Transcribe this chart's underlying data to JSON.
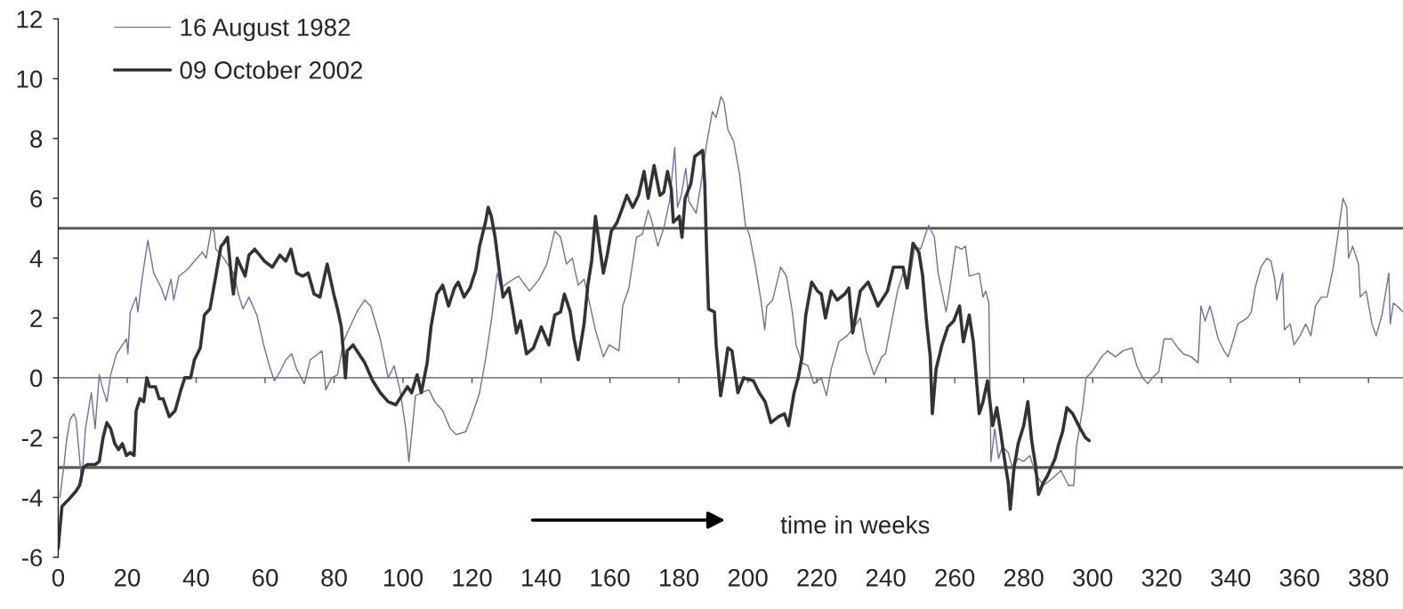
{
  "chart_data": {
    "type": "line",
    "xlim": [
      0,
      390
    ],
    "xticks": [
      0,
      20,
      40,
      60,
      80,
      100,
      120,
      140,
      160,
      180,
      200,
      220,
      240,
      260,
      280,
      300,
      320,
      340,
      360,
      380
    ],
    "ylim": [
      -6,
      12
    ],
    "yticks": [
      -6,
      -4,
      -2,
      0,
      2,
      4,
      6,
      8,
      10,
      12
    ],
    "legend": "top left",
    "ref_lines": [
      {
        "axis": "y",
        "value": 5,
        "color": "#595959"
      },
      {
        "axis": "y",
        "value": -3,
        "color": "#595959"
      }
    ],
    "annotations": [
      "time in weeks"
    ],
    "series": [
      {
        "name": "16 August 1982",
        "color": "#6b6fab",
        "x": [
          0.5,
          1.7,
          2.3,
          3.4,
          4.5,
          5.2,
          6.8,
          7.9,
          9.6,
          10.7,
          11.9,
          13.0,
          14.1,
          15.2,
          16.9,
          19.8,
          20.2,
          20.9,
          22.6,
          23.1,
          24.3,
          26.0,
          27.7,
          29.9,
          31.1,
          32.7,
          33.5,
          35.0,
          37.3,
          39.5,
          41.8,
          42.9,
          44.4,
          45.2,
          45.7,
          48.0,
          50.8,
          52.5,
          53.6,
          55.3,
          57.6,
          59.8,
          61.5,
          62.7,
          64.3,
          66.0,
          67.7,
          69.1,
          71.4,
          73.1,
          76.5,
          77.6,
          79.3,
          81.0,
          82.7,
          83.8,
          86.6,
          88.9,
          90.6,
          93.4,
          95.7,
          97.4,
          99.1,
          100.8,
          101.7,
          102.5,
          103.6,
          105.3,
          107.5,
          109.2,
          111.5,
          113.7,
          115.4,
          118.2,
          119.9,
          122.2,
          123.9,
          125.6,
          127.3,
          128.4,
          130.7,
          133.5,
          136.7,
          139.5,
          141.7,
          144.0,
          145.7,
          147.4,
          149.1,
          150.8,
          152.5,
          154.1,
          155.8,
          158.1,
          159.8,
          162.6,
          163.7,
          165.5,
          167.7,
          169.4,
          171.1,
          172.0,
          173.9,
          175.6,
          177.3,
          178.8,
          179.6,
          180.7,
          182.0,
          182.9,
          185.0,
          186.3,
          188.0,
          189.7,
          190.8,
          192.2,
          193.1,
          194.2,
          195.9,
          197.6,
          199.3,
          200.4,
          202.1,
          203.8,
          204.9,
          205.5,
          207.2,
          209.5,
          211.2,
          212.9,
          214.0,
          215.7,
          217.4,
          219.1,
          221.3,
          222.8,
          224.2,
          226.4,
          228.7,
          230.9,
          232.6,
          234.3,
          236.6,
          238.8,
          239.9,
          241.6,
          243.4,
          245.0,
          246.7,
          248.4,
          250.1,
          252.4,
          254.1,
          255.2,
          257.5,
          258.6,
          260.3,
          262.0,
          263.1,
          264.2,
          267.1,
          268.2,
          269.0,
          269.9,
          270.5,
          271.6,
          272.7,
          273.8,
          275.5,
          276.7,
          278.4,
          280.0,
          281.8,
          283.4,
          285.7,
          288.0,
          290.8,
          293.0,
          294.5,
          295.3,
          297.0,
          298.1,
          299.8,
          302.6,
          304.3,
          306.6,
          308.8,
          311.4,
          312.8,
          314.5,
          316.0,
          317.3,
          319.2,
          320.7,
          322.9,
          324.7,
          326.3,
          328.6,
          330.6,
          331.4,
          332.6,
          334.0,
          334.7,
          336.4,
          338.1,
          339.3,
          340.9,
          342.1,
          344.9,
          346.0,
          347.1,
          348.8,
          350.5,
          351.7,
          352.8,
          353.4,
          355.1,
          355.6,
          357.3,
          358.4,
          360.1,
          361.8,
          363.3,
          364.6,
          366.3,
          368.0,
          369.8,
          371.4,
          372.6,
          373.7,
          374.2,
          375.4,
          377.1,
          377.6,
          379.3,
          381.0,
          382.2,
          383.9,
          385.9,
          386.3,
          387.2,
          388.3,
          390.0
        ],
        "values": [
          -4.0,
          -2.9,
          -2.2,
          -1.4,
          -1.2,
          -1.4,
          -3.5,
          -1.7,
          -0.5,
          -1.7,
          0.1,
          -0.4,
          -0.8,
          0.1,
          0.8,
          1.3,
          0.8,
          2.2,
          2.7,
          2.2,
          3.3,
          4.6,
          3.5,
          3.0,
          2.6,
          3.3,
          2.6,
          3.4,
          3.6,
          3.9,
          4.2,
          4.0,
          5.0,
          4.9,
          4.3,
          4.0,
          3.5,
          2.7,
          2.3,
          2.7,
          2.1,
          1.0,
          0.3,
          -0.1,
          0.2,
          0.6,
          0.8,
          0.3,
          -0.2,
          0.6,
          0.9,
          -0.4,
          0.0,
          0.1,
          1.2,
          1.5,
          2.2,
          2.6,
          2.4,
          1.3,
          0.0,
          0.4,
          -0.4,
          -1.7,
          -2.8,
          -1.9,
          -0.6,
          -0.5,
          -0.4,
          -0.8,
          -1.1,
          -1.7,
          -1.9,
          -1.8,
          -1.3,
          -0.5,
          0.6,
          1.9,
          3.5,
          3.0,
          3.2,
          3.4,
          2.9,
          3.3,
          3.8,
          4.9,
          4.7,
          3.8,
          4.0,
          3.1,
          3.3,
          2.5,
          1.6,
          0.7,
          1.1,
          0.9,
          2.4,
          3.0,
          4.7,
          4.8,
          5.6,
          5.3,
          4.4,
          5.0,
          5.9,
          7.7,
          5.7,
          6.1,
          7.0,
          5.9,
          5.5,
          6.4,
          7.8,
          8.9,
          8.7,
          9.4,
          9.2,
          8.3,
          7.9,
          6.8,
          5.1,
          4.8,
          3.8,
          2.6,
          1.6,
          2.4,
          2.6,
          3.7,
          3.4,
          2.2,
          1.1,
          0.5,
          0.4,
          -0.2,
          0.0,
          -0.6,
          0.3,
          1.2,
          1.4,
          1.7,
          2.0,
          0.9,
          0.1,
          0.7,
          0.8,
          1.8,
          2.9,
          3.5,
          3.1,
          4.4,
          4.3,
          5.1,
          4.7,
          3.5,
          2.2,
          3.0,
          4.4,
          4.3,
          4.4,
          3.4,
          3.5,
          2.7,
          2.9,
          2.5,
          -2.8,
          -1.7,
          -2.7,
          -2.3,
          -2.5,
          -3.0,
          -2.7,
          -2.8,
          -2.6,
          -3.2,
          -3.6,
          -3.4,
          -3.1,
          -3.6,
          -3.6,
          -2.3,
          -1.1,
          0.0,
          0.2,
          0.7,
          0.9,
          0.7,
          0.9,
          1.0,
          0.4,
          0.0,
          -0.2,
          0.0,
          0.2,
          1.3,
          1.3,
          1.0,
          0.8,
          0.7,
          0.5,
          2.4,
          1.9,
          2.4,
          2.1,
          1.3,
          0.9,
          0.7,
          1.3,
          1.8,
          2.0,
          2.2,
          3.0,
          3.7,
          4.0,
          3.9,
          3.3,
          2.6,
          3.5,
          1.6,
          1.8,
          1.1,
          1.4,
          1.8,
          1.4,
          2.4,
          2.7,
          2.7,
          3.7,
          5.0,
          6.0,
          5.7,
          4.0,
          4.4,
          3.8,
          2.7,
          2.9,
          1.8,
          1.4,
          2.1,
          3.5,
          1.8,
          2.5,
          2.4,
          2.2
        ]
      },
      {
        "name": "09 October 2002",
        "color": "#333333",
        "x": [
          0.0,
          0.6,
          1.1,
          2.8,
          5.1,
          6.2,
          7.3,
          8.5,
          10.7,
          11.9,
          13.0,
          14.1,
          15.2,
          16.4,
          17.5,
          18.6,
          19.8,
          20.9,
          22.0,
          22.6,
          23.7,
          24.8,
          25.7,
          26.5,
          28.2,
          29.3,
          30.4,
          32.2,
          33.9,
          35.6,
          36.7,
          38.4,
          39.5,
          41.2,
          42.4,
          44.0,
          45.7,
          47.2,
          48.0,
          49.1,
          50.2,
          50.8,
          51.9,
          54.2,
          55.3,
          57.0,
          59.8,
          62.1,
          64.3,
          66.0,
          67.5,
          69.1,
          70.9,
          72.5,
          74.2,
          75.9,
          78.0,
          79.9,
          81.0,
          82.1,
          83.3,
          83.8,
          85.5,
          87.2,
          88.9,
          91.2,
          93.4,
          95.7,
          97.9,
          99.6,
          101.3,
          102.5,
          104.1,
          105.3,
          107.0,
          108.1,
          109.8,
          111.5,
          113.2,
          114.9,
          116.0,
          117.7,
          119.4,
          121.1,
          122.2,
          123.9,
          124.7,
          125.6,
          126.7,
          127.9,
          129.0,
          130.7,
          131.8,
          132.9,
          134.1,
          135.8,
          137.8,
          140.1,
          142.3,
          144.0,
          145.7,
          146.8,
          148.5,
          149.6,
          150.8,
          152.5,
          153.6,
          154.7,
          155.8,
          157.0,
          158.1,
          159.2,
          160.4,
          162.1,
          163.7,
          164.9,
          166.6,
          168.3,
          169.9,
          171.1,
          172.8,
          174.5,
          175.6,
          176.7,
          177.8,
          178.4,
          180.1,
          180.9,
          181.8,
          183.5,
          184.6,
          186.9,
          187.5,
          188.0,
          188.6,
          190.3,
          190.8,
          192.1,
          193.1,
          194.2,
          195.4,
          197.1,
          198.8,
          201.6,
          203.3,
          205.0,
          206.7,
          208.9,
          210.6,
          211.8,
          213.4,
          214.6,
          215.7,
          216.8,
          218.5,
          220.2,
          221.3,
          222.5,
          224.2,
          225.9,
          228.1,
          229.3,
          230.4,
          231.5,
          232.6,
          234.9,
          237.7,
          240.5,
          242.2,
          245.0,
          246.2,
          247.9,
          249.6,
          250.7,
          251.8,
          252.9,
          253.5,
          254.6,
          256.3,
          258.0,
          259.7,
          261.4,
          262.5,
          264.2,
          265.4,
          267.1,
          268.2,
          269.5,
          271.0,
          272.2,
          273.3,
          274.4,
          275.5,
          276.1,
          277.2,
          278.4,
          280.0,
          281.2,
          282.3,
          283.4,
          284.3,
          285.7,
          286.8,
          289.1,
          290.2,
          291.3,
          292.5,
          294.2,
          296.4,
          297.9,
          299.0
        ],
        "values": [
          -5.7,
          -4.9,
          -4.3,
          -4.1,
          -3.8,
          -3.6,
          -3.0,
          -2.9,
          -2.9,
          -2.8,
          -2.0,
          -1.5,
          -1.7,
          -2.2,
          -2.4,
          -2.2,
          -2.6,
          -2.5,
          -2.6,
          -1.1,
          -0.7,
          -0.8,
          0.0,
          -0.3,
          -0.3,
          -0.7,
          -0.7,
          -1.3,
          -1.1,
          -0.4,
          0.0,
          0.0,
          0.6,
          1.0,
          2.1,
          2.3,
          3.4,
          4.4,
          4.5,
          4.7,
          3.4,
          2.8,
          4.0,
          3.4,
          4.1,
          4.3,
          3.9,
          3.7,
          4.1,
          3.9,
          4.3,
          3.5,
          3.4,
          3.5,
          2.8,
          2.7,
          3.8,
          2.8,
          2.3,
          1.7,
          0.0,
          0.9,
          1.1,
          0.8,
          0.5,
          -0.1,
          -0.5,
          -0.8,
          -0.9,
          -0.6,
          -0.3,
          -0.5,
          0.1,
          -0.5,
          0.5,
          1.7,
          2.8,
          3.1,
          2.4,
          3.0,
          3.2,
          2.7,
          3.0,
          3.6,
          4.4,
          5.2,
          5.7,
          5.4,
          4.7,
          3.6,
          2.7,
          3.0,
          2.3,
          1.5,
          1.9,
          0.8,
          1.0,
          1.7,
          1.1,
          2.1,
          2.2,
          2.8,
          2.2,
          1.3,
          0.6,
          1.8,
          3.1,
          3.9,
          5.4,
          4.4,
          3.5,
          4.1,
          4.9,
          5.2,
          5.7,
          6.1,
          5.7,
          6.1,
          6.9,
          6.0,
          7.1,
          6.1,
          6.2,
          6.9,
          6.3,
          5.2,
          5.4,
          4.7,
          6.0,
          6.5,
          7.4,
          7.6,
          6.5,
          4.4,
          2.3,
          2.2,
          1.1,
          -0.6,
          0.1,
          1.0,
          0.9,
          -0.5,
          0.0,
          -0.1,
          -0.5,
          -0.8,
          -1.5,
          -1.3,
          -1.2,
          -1.6,
          -0.5,
          0.0,
          0.7,
          2.1,
          3.2,
          2.9,
          2.8,
          2.0,
          2.9,
          2.6,
          2.8,
          3.0,
          1.5,
          2.2,
          2.9,
          3.2,
          2.4,
          2.9,
          3.7,
          3.7,
          3.0,
          4.5,
          4.2,
          3.4,
          1.9,
          0.7,
          -1.2,
          0.3,
          1.1,
          1.7,
          1.9,
          2.4,
          1.2,
          2.1,
          1.2,
          -1.2,
          -0.8,
          -0.1,
          -1.6,
          -1.0,
          -1.8,
          -2.7,
          -3.5,
          -4.4,
          -3.0,
          -2.2,
          -1.6,
          -0.8,
          -2.1,
          -2.9,
          -3.9,
          -3.5,
          -3.3,
          -2.7,
          -2.2,
          -1.8,
          -1.0,
          -1.2,
          -1.7,
          -2.0,
          -2.1
        ]
      }
    ]
  }
}
